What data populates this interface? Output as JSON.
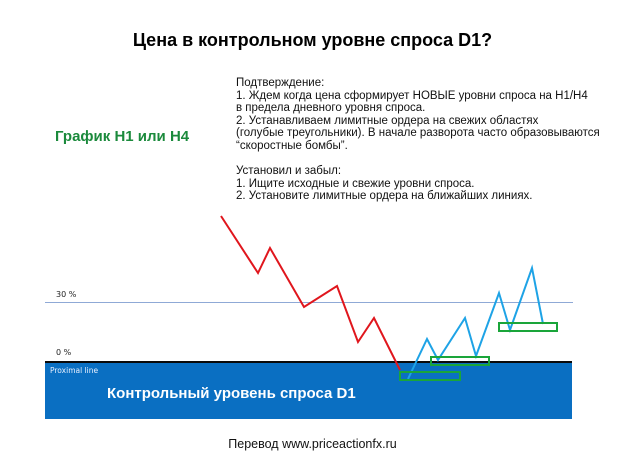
{
  "title": "Цена в контрольном уровне спроса D1?",
  "subtitle": "График H1 или H4",
  "description": {
    "confirmation_lines": [
      "Подтверждение:",
      "1. Ждем когда цена сформирует НОВЫЕ уровни спроса на H1/H4",
      "в предела дневного уровня спроса.",
      "2. Устанавливаем лимитные ордера на свежих областях",
      "(голубые треугольники). В начале разворота часто образовываются",
      "“скоростные бомбы”."
    ],
    "setup_lines": [
      "Установил и забыл:",
      "1. Ищите исходные и свежие уровни спроса.",
      "2. Установите лимитные ордера на ближайших линиях."
    ]
  },
  "levels": {
    "level_30_label": "30 %",
    "level_0_label": "0 %",
    "zone_line_label": "Proximal line",
    "zone_title": "Контрольный уровень спроса D1"
  },
  "colors": {
    "downtrend": "#e0161d",
    "uptrend": "#1ea3e6",
    "zone_fill": "#0a6fc2",
    "demand_box": "#1aa53a",
    "subtitle": "#1b8a3c"
  },
  "footer": "Перевод www.priceactionfx.ru"
}
